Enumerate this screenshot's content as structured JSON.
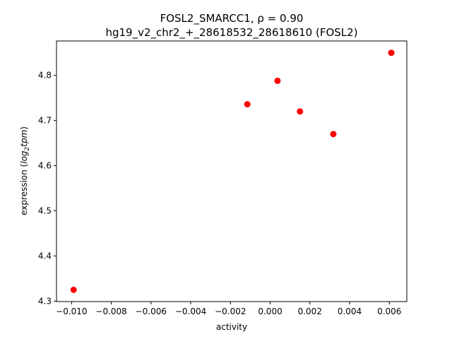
{
  "chart_data": {
    "type": "scatter",
    "title": "FOSL2_SMARCC1, ρ = 0.90",
    "subtitle": "hg19_v2_chr2_+_28618532_28618610 (FOSL2)",
    "xlabel": "activity",
    "ylabel_prefix": "expression (",
    "ylabel_math": "log",
    "ylabel_sub": "2",
    "ylabel_math2": "tpm",
    "ylabel_suffix": ")",
    "xlim": [
      -0.01076,
      0.00688
    ],
    "ylim": [
      4.299,
      4.8762
    ],
    "x_ticks": [
      -0.01,
      -0.008,
      -0.006,
      -0.004,
      -0.002,
      0.0,
      0.002,
      0.004,
      0.006
    ],
    "x_tick_labels": [
      "−0.010",
      "−0.008",
      "−0.006",
      "−0.004",
      "−0.002",
      "0.000",
      "0.002",
      "0.004",
      "0.006"
    ],
    "y_ticks": [
      4.3,
      4.4,
      4.5,
      4.6,
      4.7,
      4.8
    ],
    "y_tick_labels": [
      "4.3",
      "4.4",
      "4.5",
      "4.6",
      "4.7",
      "4.8"
    ],
    "grid": false,
    "marker_color": "#ff0000",
    "points": [
      {
        "x": -0.0099,
        "y": 4.325
      },
      {
        "x": -0.00115,
        "y": 4.736
      },
      {
        "x": 0.00037,
        "y": 4.788
      },
      {
        "x": 0.0015,
        "y": 4.72
      },
      {
        "x": 0.00318,
        "y": 4.67
      },
      {
        "x": 0.0061,
        "y": 4.85
      }
    ]
  }
}
